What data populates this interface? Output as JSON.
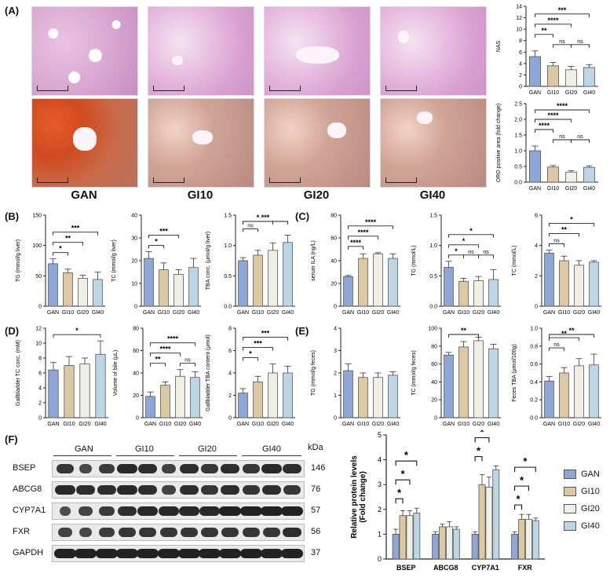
{
  "panels": {
    "A": "(A)",
    "B": "(B)",
    "C": "(C)",
    "D": "(D)",
    "E": "(E)",
    "F": "(F)"
  },
  "groups": [
    "GAN",
    "GI10",
    "GI20",
    "GI40"
  ],
  "colors": {
    "GAN": "#8fa7d6",
    "GI10": "#dcc9a3",
    "GI20": "#efefe6",
    "GI40": "#bcd6e6"
  },
  "western_blot": {
    "group_headers": [
      "GAN",
      "GI10",
      "GI20",
      "GI40"
    ],
    "proteins": [
      {
        "name": "BSEP",
        "kda": "146"
      },
      {
        "name": "ABCG8",
        "kda": "76"
      },
      {
        "name": "CYP7A1",
        "kda": "57"
      },
      {
        "name": "FXR",
        "kda": "56"
      },
      {
        "name": "GAPDH",
        "kda": "37"
      }
    ],
    "kda_label": "kDa"
  },
  "chart_data": [
    {
      "id": "nas",
      "type": "bar",
      "ylabel": "NAS",
      "ylim": [
        0,
        14
      ],
      "yticks": [
        0,
        2,
        4,
        6,
        8,
        10,
        12,
        14
      ],
      "categories": [
        "GAN",
        "GI10",
        "GI20",
        "GI40"
      ],
      "values": [
        5.2,
        3.6,
        2.9,
        3.3
      ],
      "errors": [
        1.0,
        0.6,
        0.6,
        0.5
      ],
      "sig": [
        {
          "from": 0,
          "to": 3,
          "label": "***",
          "level": 4
        },
        {
          "from": 0,
          "to": 2,
          "label": "****",
          "level": 3
        },
        {
          "from": 0,
          "to": 1,
          "label": "**",
          "level": 2
        },
        {
          "from": 1,
          "to": 2,
          "label": "ns",
          "level": 1
        },
        {
          "from": 2,
          "to": 3,
          "label": "ns",
          "level": 1
        }
      ]
    },
    {
      "id": "oro",
      "type": "bar",
      "ylabel": "ORO positive area (fold change)",
      "ylim": [
        0,
        2.5
      ],
      "yticks": [
        0.0,
        0.5,
        1.0,
        1.5,
        2.0,
        2.5
      ],
      "categories": [
        "GAN",
        "GI10",
        "GI20",
        "GI40"
      ],
      "values": [
        1.0,
        0.48,
        0.32,
        0.47
      ],
      "errors": [
        0.15,
        0.05,
        0.04,
        0.05
      ],
      "sig": [
        {
          "from": 0,
          "to": 3,
          "label": "****",
          "level": 4
        },
        {
          "from": 0,
          "to": 2,
          "label": "****",
          "level": 3
        },
        {
          "from": 0,
          "to": 1,
          "label": "****",
          "level": 2
        },
        {
          "from": 1,
          "to": 2,
          "label": "ns",
          "level": 1
        },
        {
          "from": 2,
          "to": 3,
          "label": "ns",
          "level": 1
        }
      ]
    },
    {
      "id": "b_tg",
      "type": "bar",
      "ylabel": "TG (mmol/g liver)",
      "ylim": [
        0,
        150
      ],
      "yticks": [
        0,
        50,
        100,
        150
      ],
      "categories": [
        "GAN",
        "GI10",
        "GI20",
        "GI40"
      ],
      "values": [
        70,
        55,
        46,
        44
      ],
      "errors": [
        8,
        6,
        5,
        12
      ],
      "sig": [
        {
          "from": 0,
          "to": 3,
          "label": "***",
          "level": 3
        },
        {
          "from": 0,
          "to": 2,
          "label": "**",
          "level": 2
        },
        {
          "from": 0,
          "to": 1,
          "label": "*",
          "level": 1
        }
      ]
    },
    {
      "id": "b_tc",
      "type": "bar",
      "ylabel": "TC (mmol/g liver)",
      "ylim": [
        0,
        40
      ],
      "yticks": [
        0,
        10,
        20,
        30,
        40
      ],
      "categories": [
        "GAN",
        "GI10",
        "GI20",
        "GI40"
      ],
      "values": [
        21,
        16,
        14,
        17
      ],
      "errors": [
        3,
        3,
        2,
        4
      ],
      "sig": [
        {
          "from": 0,
          "to": 2,
          "label": "***",
          "level": 2
        },
        {
          "from": 0,
          "to": 1,
          "label": "*",
          "level": 1
        }
      ]
    },
    {
      "id": "b_tba",
      "type": "bar",
      "ylabel": "TBA conc. (μmol/g liver)",
      "ylim": [
        0,
        1.5
      ],
      "yticks": [
        0.0,
        0.5,
        1.0,
        1.5
      ],
      "categories": [
        "GAN",
        "GI10",
        "GI20",
        "GI40"
      ],
      "values": [
        0.75,
        0.84,
        0.92,
        1.05
      ],
      "errors": [
        0.05,
        0.08,
        0.12,
        0.12
      ],
      "sig": [
        {
          "from": 0,
          "to": 3,
          "label": "***",
          "level": 3
        },
        {
          "from": 0,
          "to": 2,
          "label": "*",
          "level": 2
        },
        {
          "from": 0,
          "to": 1,
          "label": "ns",
          "level": 1
        }
      ]
    },
    {
      "id": "c_ila",
      "type": "bar",
      "ylabel": "serum ILA  (ng/L)",
      "ylim": [
        0,
        80
      ],
      "yticks": [
        0,
        20,
        40,
        60,
        80
      ],
      "categories": [
        "GAN",
        "GI10",
        "GI20",
        "GI40"
      ],
      "values": [
        26,
        42,
        46,
        42
      ],
      "errors": [
        1,
        4,
        1,
        4
      ],
      "sig": [
        {
          "from": 0,
          "to": 3,
          "label": "****",
          "level": 3
        },
        {
          "from": 0,
          "to": 2,
          "label": "****",
          "level": 2
        },
        {
          "from": 0,
          "to": 1,
          "label": "****",
          "level": 1
        }
      ]
    },
    {
      "id": "c_tg",
      "type": "bar",
      "ylabel": "TG (mmol/L)",
      "ylim": [
        0,
        1.5
      ],
      "yticks": [
        0.0,
        0.5,
        1.0,
        1.5
      ],
      "categories": [
        "GAN",
        "GI10",
        "GI20",
        "GI40"
      ],
      "values": [
        0.64,
        0.41,
        0.42,
        0.44
      ],
      "errors": [
        0.1,
        0.05,
        0.07,
        0.16
      ],
      "sig": [
        {
          "from": 0,
          "to": 3,
          "label": "*",
          "level": 3
        },
        {
          "from": 0,
          "to": 2,
          "label": "*",
          "level": 2
        },
        {
          "from": 0,
          "to": 1,
          "label": "*",
          "level": 1
        },
        {
          "from": 1,
          "to": 2,
          "label": "ns",
          "level": 1
        },
        {
          "from": 2,
          "to": 3,
          "label": "ns",
          "level": 1
        }
      ]
    },
    {
      "id": "c_tc",
      "type": "bar",
      "ylabel": "TC (mmol/L)",
      "ylim": [
        0,
        6
      ],
      "yticks": [
        0,
        2,
        4,
        6
      ],
      "categories": [
        "GAN",
        "GI10",
        "GI20",
        "GI40"
      ],
      "values": [
        3.5,
        3.0,
        2.7,
        2.9
      ],
      "errors": [
        0.2,
        0.3,
        0.3,
        0.1
      ],
      "sig": [
        {
          "from": 0,
          "to": 3,
          "label": "*",
          "level": 3
        },
        {
          "from": 0,
          "to": 2,
          "label": "**",
          "level": 2
        },
        {
          "from": 0,
          "to": 1,
          "label": "ns",
          "level": 1
        }
      ]
    },
    {
      "id": "d_gtc",
      "type": "bar",
      "ylabel": "Gallbladder TC conc. (mM)",
      "ylim": [
        0,
        12
      ],
      "yticks": [
        0,
        2,
        4,
        6,
        8,
        10,
        12
      ],
      "categories": [
        "GAN",
        "GI10",
        "GI20",
        "GI40"
      ],
      "values": [
        6.4,
        7.0,
        7.2,
        8.5
      ],
      "errors": [
        1.0,
        1.2,
        0.8,
        1.8
      ],
      "sig": [
        {
          "from": 0,
          "to": 3,
          "label": "*",
          "level": 1
        }
      ]
    },
    {
      "id": "d_bile",
      "type": "bar",
      "ylabel": "Volume of bile (μL)",
      "ylim": [
        0,
        80
      ],
      "yticks": [
        0,
        20,
        40,
        60,
        80
      ],
      "categories": [
        "GAN",
        "GI10",
        "GI20",
        "GI40"
      ],
      "values": [
        19,
        29,
        37,
        36
      ],
      "errors": [
        4,
        3,
        6,
        5
      ],
      "sig": [
        {
          "from": 0,
          "to": 3,
          "label": "****",
          "level": 3
        },
        {
          "from": 0,
          "to": 2,
          "label": "****",
          "level": 2
        },
        {
          "from": 0,
          "to": 1,
          "label": "**",
          "level": 1
        },
        {
          "from": 2,
          "to": 3,
          "label": "ns",
          "level": 1
        }
      ]
    },
    {
      "id": "d_gtba",
      "type": "bar",
      "ylabel": "Gallbladder TBA content (μmol)",
      "ylim": [
        0,
        8
      ],
      "yticks": [
        0,
        2,
        4,
        6,
        8
      ],
      "categories": [
        "GAN",
        "GI10",
        "GI20",
        "GI40"
      ],
      "values": [
        2.2,
        3.2,
        4.0,
        4.0
      ],
      "errors": [
        0.4,
        0.5,
        0.8,
        0.6
      ],
      "sig": [
        {
          "from": 0,
          "to": 3,
          "label": "***",
          "level": 3
        },
        {
          "from": 0,
          "to": 2,
          "label": "***",
          "level": 2
        },
        {
          "from": 0,
          "to": 1,
          "label": "*",
          "level": 1
        }
      ]
    },
    {
      "id": "e_tg",
      "type": "bar",
      "ylabel": "TG (mmol/g feces)",
      "ylim": [
        0,
        4
      ],
      "yticks": [
        0,
        1,
        2,
        3,
        4
      ],
      "categories": [
        "GAN",
        "GI10",
        "GI20",
        "GI40"
      ],
      "values": [
        2.1,
        1.8,
        1.8,
        1.9
      ],
      "errors": [
        0.3,
        0.2,
        0.2,
        0.15
      ],
      "sig": []
    },
    {
      "id": "e_tc",
      "type": "bar",
      "ylabel": "TC (mmol/g feces)",
      "ylim": [
        0,
        100
      ],
      "yticks": [
        0,
        20,
        40,
        60,
        80,
        100
      ],
      "categories": [
        "GAN",
        "GI10",
        "GI20",
        "GI40"
      ],
      "values": [
        70,
        79,
        86,
        77
      ],
      "errors": [
        3,
        6,
        4,
        5
      ],
      "sig": [
        {
          "from": 0,
          "to": 2,
          "label": "**",
          "level": 1
        }
      ]
    },
    {
      "id": "e_tba",
      "type": "bar",
      "ylabel": "Feces TBA (μmol/100g)",
      "ylim": [
        0,
        1.0
      ],
      "yticks": [
        0.0,
        0.2,
        0.4,
        0.6,
        0.8,
        1.0
      ],
      "categories": [
        "GAN",
        "GI10",
        "GI20",
        "GI40"
      ],
      "values": [
        0.41,
        0.5,
        0.58,
        0.59
      ],
      "errors": [
        0.05,
        0.06,
        0.08,
        0.12
      ],
      "sig": [
        {
          "from": 0,
          "to": 3,
          "label": "**",
          "level": 3
        },
        {
          "from": 0,
          "to": 2,
          "label": "**",
          "level": 2
        },
        {
          "from": 0,
          "to": 1,
          "label": "ns",
          "level": 1
        }
      ]
    },
    {
      "id": "f_protein",
      "type": "bar",
      "ylabel": "Relative protein levels\n(Fold change)",
      "ylim": [
        0,
        5
      ],
      "yticks": [
        0,
        1,
        2,
        3,
        4,
        5
      ],
      "categories": [
        "BSEP",
        "ABCG8",
        "CYP7A1",
        "FXR"
      ],
      "series": [
        {
          "name": "GAN",
          "values": [
            1.0,
            1.0,
            1.0,
            1.0
          ],
          "errors": [
            0.2,
            0.1,
            0.1,
            0.1
          ]
        },
        {
          "name": "GI10",
          "values": [
            1.75,
            1.3,
            3.0,
            1.6
          ],
          "errors": [
            0.2,
            0.1,
            0.4,
            0.2
          ]
        },
        {
          "name": "GI20",
          "values": [
            1.75,
            1.3,
            2.9,
            1.6
          ],
          "errors": [
            0.2,
            0.2,
            0.4,
            0.2
          ]
        },
        {
          "name": "GI40",
          "values": [
            1.85,
            1.2,
            3.6,
            1.55
          ],
          "errors": [
            0.2,
            0.1,
            0.15,
            0.1
          ]
        }
      ],
      "sig": [
        {
          "cat": 0,
          "labels": [
            "*",
            "*",
            "*"
          ]
        },
        {
          "cat": 2,
          "labels": [
            "*",
            "*",
            "***"
          ]
        },
        {
          "cat": 3,
          "labels": [
            "*",
            "*",
            "*"
          ]
        }
      ]
    }
  ]
}
